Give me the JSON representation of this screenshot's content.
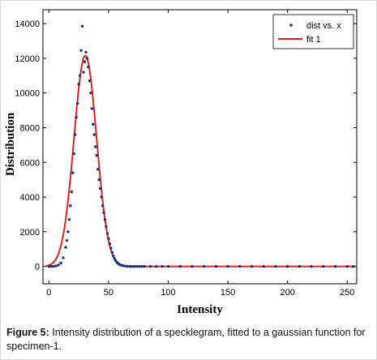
{
  "chart_data": {
    "type": "scatter",
    "xlabel": "Intensity",
    "ylabel": "Distribution",
    "xlim": [
      -5,
      258
    ],
    "ylim": [
      -1000,
      14800
    ],
    "xticks": [
      0,
      50,
      100,
      150,
      200,
      250
    ],
    "yticks": [
      0,
      2000,
      4000,
      6000,
      8000,
      10000,
      12000,
      14000
    ],
    "grid": false,
    "legend_position": "top-right",
    "series": [
      {
        "name": "dist vs. x",
        "type": "scatter",
        "color": "#1f2f7a",
        "x": [
          0,
          2,
          4,
          6,
          8,
          10,
          12,
          14,
          15,
          16,
          17,
          18,
          19,
          20,
          21,
          22,
          23,
          24,
          25,
          26,
          27,
          28,
          29,
          30,
          31,
          32,
          33,
          34,
          35,
          36,
          37,
          38,
          39,
          40,
          41,
          42,
          43,
          44,
          45,
          46,
          47,
          48,
          49,
          50,
          51,
          52,
          53,
          54,
          55,
          56,
          57,
          58,
          59,
          60,
          62,
          64,
          66,
          68,
          70,
          72,
          74,
          76,
          78,
          80,
          85,
          90,
          95,
          100,
          110,
          120,
          130,
          140,
          150,
          160,
          170,
          180,
          190,
          200,
          210,
          220,
          230,
          240,
          250,
          255
        ],
        "y": [
          0,
          0,
          10,
          30,
          80,
          200,
          500,
          1100,
          1500,
          2000,
          2700,
          3500,
          4300,
          5400,
          6500,
          7600,
          8600,
          9400,
          10500,
          11000,
          12450,
          13850,
          11200,
          11800,
          12350,
          12000,
          11500,
          10700,
          10000,
          9100,
          8200,
          7600,
          6900,
          6400,
          5600,
          5000,
          4500,
          4000,
          3500,
          3100,
          2700,
          2300,
          1900,
          1600,
          1300,
          1050,
          800,
          600,
          450,
          330,
          240,
          170,
          120,
          80,
          40,
          20,
          10,
          0,
          0,
          0,
          0,
          0,
          0,
          0,
          0,
          0,
          0,
          0,
          0,
          0,
          0,
          0,
          0,
          0,
          0,
          0,
          0,
          0,
          0,
          0,
          0,
          0,
          0,
          0
        ]
      },
      {
        "name": "fit 1",
        "type": "line",
        "color": "#e02020",
        "function": "gaussian",
        "amplitude": 12150,
        "center": 30.5,
        "sigma": 9.5,
        "x_range": [
          -3,
          257
        ]
      }
    ]
  },
  "caption": {
    "label": "Figure 5:",
    "text": " Intensity distribution of a specklegram, fitted to a gaussian function for specimen-1."
  }
}
